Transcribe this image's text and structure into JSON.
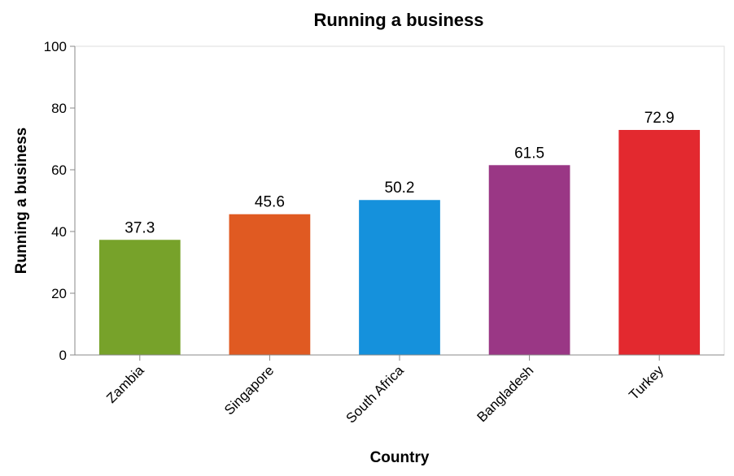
{
  "chart_data": {
    "type": "bar",
    "title": "Running a business",
    "xlabel": "Country",
    "ylabel": "Running a business",
    "categories": [
      "Zambia",
      "Singapore",
      "South Africa",
      "Bangladesh",
      "Turkey"
    ],
    "values": [
      37.3,
      45.6,
      50.2,
      61.5,
      72.9
    ],
    "value_labels": [
      "37.3",
      "45.6",
      "50.2",
      "61.5",
      "72.9"
    ],
    "colors": [
      "#77a22a",
      "#e05a22",
      "#1591dc",
      "#9a3785",
      "#e3292f"
    ],
    "ylim": [
      0,
      100
    ],
    "yticks": [
      "0",
      "20",
      "40",
      "60",
      "80",
      "100"
    ],
    "grid": false,
    "legend": "none"
  }
}
